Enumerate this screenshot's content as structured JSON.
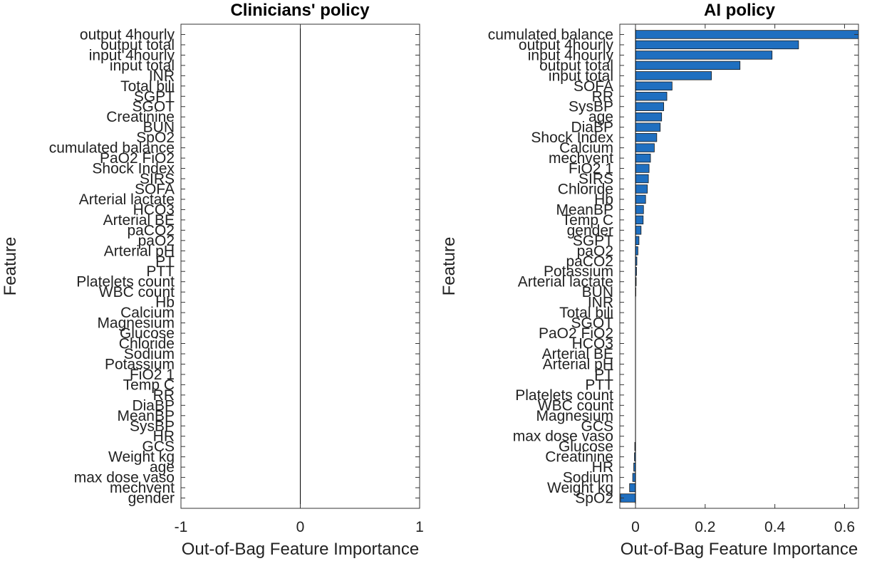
{
  "chart_data": [
    {
      "type": "bar",
      "orientation": "horizontal",
      "title": "Clinicians' policy",
      "xlabel": "Out-of-Bag Feature Importance",
      "ylabel": "Feature",
      "xlim": [
        -1,
        1
      ],
      "xticks": [
        -1,
        0,
        1
      ],
      "xtick_labels": [
        "-1",
        "0",
        "1"
      ],
      "grid": false,
      "bar_color": "#1f6fc0",
      "categories": [
        "output 4hourly",
        "output total",
        "input 4hourly",
        "input total",
        "INR",
        "Total bili",
        "SGPT",
        "SGOT",
        "Creatinine",
        "BUN",
        "SpO2",
        "cumulated balance",
        "PaO2 FiO2",
        "Shock Index",
        "SIRS",
        "SOFA",
        "Arterial lactate",
        "HCO3",
        "Arterial BE",
        "paCO2",
        "paO2",
        "Arterial pH",
        "PT",
        "PTT",
        "Platelets count",
        "WBC count",
        "Hb",
        "Calcium",
        "Magnesium",
        "Glucose",
        "Chloride",
        "Sodium",
        "Potassium",
        "FiO2 1",
        "Temp C",
        "RR",
        "DiaBP",
        "MeanBP",
        "SysBP",
        "HR",
        "GCS",
        "Weight kg",
        "age",
        "max dose vaso",
        "mechvent",
        "gender"
      ],
      "values": [
        0,
        0,
        0,
        0,
        0,
        0,
        0,
        0,
        0,
        0,
        0,
        0,
        0,
        0,
        0,
        0,
        0,
        0,
        0,
        0,
        0,
        0,
        0,
        0,
        0,
        0,
        0,
        0,
        0,
        0,
        0,
        0,
        0,
        0,
        0,
        0,
        0,
        0,
        0,
        0,
        0,
        0,
        0,
        0,
        0,
        0
      ]
    },
    {
      "type": "bar",
      "orientation": "horizontal",
      "title": "AI policy",
      "xlabel": "Out-of-Bag Feature Importance",
      "ylabel": "Feature",
      "xlim": [
        -0.045,
        0.64
      ],
      "xticks": [
        0,
        0.2,
        0.4,
        0.6
      ],
      "xtick_labels": [
        "0",
        "0.2",
        "0.4",
        "0.6"
      ],
      "grid": false,
      "bar_color": "#1f6fc0",
      "categories": [
        "cumulated balance",
        "output 4hourly",
        "input 4hourly",
        "output total",
        "input total",
        "SOFA",
        "RR",
        "SysBP",
        "age",
        "DiaBP",
        "Shock Index",
        "Calcium",
        "mechvent",
        "FiO2 1",
        "SIRS",
        "Chloride",
        "Hb",
        "MeanBP",
        "Temp C",
        "gender",
        "SGPT",
        "paO2",
        "paCO2",
        "Potassium",
        "Arterial lactate",
        "BUN",
        "INR",
        "Total bili",
        "SGOT",
        "PaO2 FiO2",
        "HCO3",
        "Arterial BE",
        "Arterial pH",
        "PT",
        "PTT",
        "Platelets count",
        "WBC count",
        "Magnesium",
        "GCS",
        "max dose vaso",
        "Glucose",
        "Creatinine",
        "HR",
        "Sodium",
        "Weight kg",
        "SpO2"
      ],
      "values": [
        0.64,
        0.468,
        0.392,
        0.3,
        0.218,
        0.105,
        0.09,
        0.081,
        0.075,
        0.071,
        0.061,
        0.054,
        0.043,
        0.039,
        0.037,
        0.034,
        0.029,
        0.023,
        0.022,
        0.016,
        0.01,
        0.007,
        0.004,
        0.003,
        0.002,
        0.001,
        0,
        0,
        0,
        0,
        0,
        0,
        0,
        0,
        0,
        0,
        0,
        0,
        0,
        0,
        -0.002,
        -0.003,
        -0.005,
        -0.008,
        -0.017,
        -0.043
      ]
    }
  ]
}
